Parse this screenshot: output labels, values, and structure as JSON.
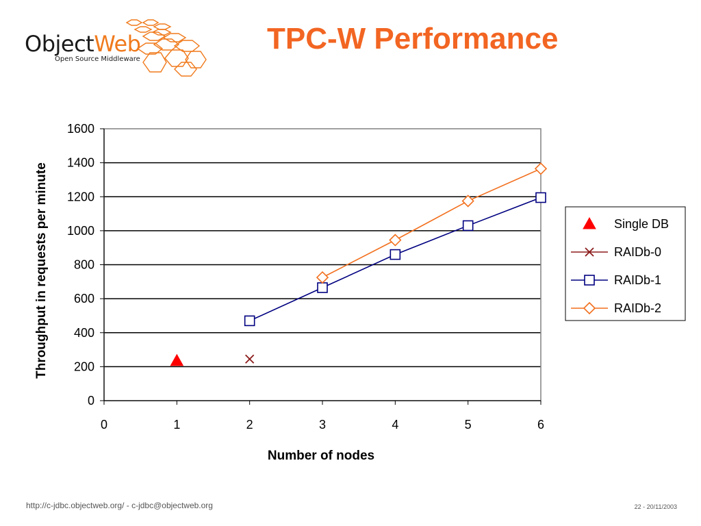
{
  "logo": {
    "word_part1": "Object",
    "word_part2": "Web",
    "tagline": "Open Source Middleware",
    "dark_color": "#1a1a1a",
    "accent_color": "#f07a1c"
  },
  "slide": {
    "title": "TPC-W Performance",
    "title_color": "#f26522"
  },
  "chart_data": {
    "type": "line",
    "title": "",
    "xlabel": "Number of nodes",
    "ylabel": "Throughput in requests per minute",
    "xlim": [
      0,
      6
    ],
    "ylim": [
      0,
      1600
    ],
    "x_ticks": [
      0,
      1,
      2,
      3,
      4,
      5,
      6
    ],
    "y_ticks": [
      0,
      200,
      400,
      600,
      800,
      1000,
      1200,
      1400,
      1600
    ],
    "grid": "horizontal",
    "legend_position": "right",
    "series": [
      {
        "name": "Single DB",
        "marker": "triangle",
        "line": false,
        "color": "#ff0000",
        "points": [
          [
            1,
            235
          ]
        ]
      },
      {
        "name": "RAIDb-0",
        "marker": "x",
        "line": true,
        "color": "#8b1a1a",
        "points": [
          [
            2,
            245
          ]
        ]
      },
      {
        "name": "RAIDb-1",
        "marker": "square",
        "line": true,
        "color": "#000080",
        "points": [
          [
            2,
            470
          ],
          [
            3,
            665
          ],
          [
            4,
            860
          ],
          [
            5,
            1030
          ],
          [
            6,
            1195
          ]
        ]
      },
      {
        "name": "RAIDb-2",
        "marker": "diamond",
        "line": true,
        "color": "#f26f1d",
        "points": [
          [
            3,
            725
          ],
          [
            4,
            945
          ],
          [
            5,
            1175
          ],
          [
            6,
            1365
          ]
        ]
      }
    ]
  },
  "footer": {
    "url": "http://c-jdbc.objectweb.org/ - c-jdbc@objectweb.org",
    "page": "22 - 20/11/2003"
  }
}
